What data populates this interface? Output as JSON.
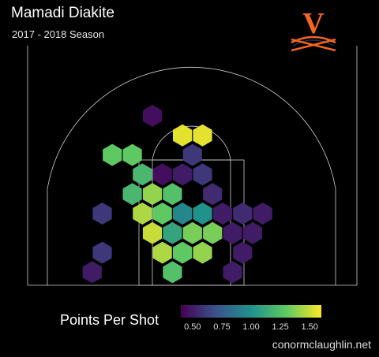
{
  "header": {
    "title": "Mamadi Diakite",
    "subtitle": "2017 - 2018 Season"
  },
  "logo": {
    "icon": "virginia-v-sabres-logo",
    "letter": "V",
    "color_orange": "#f26522",
    "color_blue": "#232d4b"
  },
  "legend": {
    "label": "Points Per Shot",
    "ticks": [
      "0.50",
      "0.75",
      "1.00",
      "1.25",
      "1.50"
    ],
    "tick_values": [
      0.5,
      0.75,
      1.0,
      1.25,
      1.5
    ],
    "range": [
      0.4,
      1.6
    ]
  },
  "credit": "conormclaughlin.net",
  "chart_data": {
    "type": "heatmap",
    "title": "Mamadi Diakite",
    "subtitle": "2017 - 2018 Season",
    "colorscale": "viridis",
    "color_label": "Points Per Shot",
    "color_range": [
      0.4,
      1.6
    ],
    "hex_grid": "row r, column c (court hexbins)",
    "hexes": [
      {
        "r": 0,
        "c": 5,
        "v": 0.45
      },
      {
        "r": 1,
        "c": 6.5,
        "v": 1.55
      },
      {
        "r": 1,
        "c": 7.5,
        "v": 1.55
      },
      {
        "r": 2,
        "c": 3,
        "v": 1.3
      },
      {
        "r": 2,
        "c": 4,
        "v": 1.3
      },
      {
        "r": 2,
        "c": 7,
        "v": 0.6
      },
      {
        "r": 3,
        "c": 4.5,
        "v": 1.2
      },
      {
        "r": 3,
        "c": 5.5,
        "v": 0.45
      },
      {
        "r": 3,
        "c": 6.5,
        "v": 0.5
      },
      {
        "r": 3,
        "c": 7.5,
        "v": 0.6
      },
      {
        "r": 4,
        "c": 4,
        "v": 1.2
      },
      {
        "r": 4,
        "c": 5,
        "v": 1.4
      },
      {
        "r": 4,
        "c": 6,
        "v": 1.25
      },
      {
        "r": 4,
        "c": 8,
        "v": 0.55
      },
      {
        "r": 5,
        "c": 2.5,
        "v": 0.6
      },
      {
        "r": 5,
        "c": 4.5,
        "v": 1.45
      },
      {
        "r": 5,
        "c": 5.5,
        "v": 1.3
      },
      {
        "r": 5,
        "c": 6.5,
        "v": 0.95
      },
      {
        "r": 5,
        "c": 7.5,
        "v": 1.0
      },
      {
        "r": 5,
        "c": 8.5,
        "v": 0.5
      },
      {
        "r": 5,
        "c": 9.5,
        "v": 0.55
      },
      {
        "r": 5,
        "c": 10.5,
        "v": 0.5
      },
      {
        "r": 6,
        "c": 5,
        "v": 1.5
      },
      {
        "r": 6,
        "c": 6,
        "v": 1.1
      },
      {
        "r": 6,
        "c": 7,
        "v": 1.35
      },
      {
        "r": 6,
        "c": 8,
        "v": 1.35
      },
      {
        "r": 6,
        "c": 9,
        "v": 0.5
      },
      {
        "r": 6,
        "c": 10,
        "v": 0.5
      },
      {
        "r": 7,
        "c": 2.5,
        "v": 0.6
      },
      {
        "r": 7,
        "c": 5.5,
        "v": 1.45
      },
      {
        "r": 7,
        "c": 6.5,
        "v": 1.3
      },
      {
        "r": 7,
        "c": 7.5,
        "v": 1.4
      },
      {
        "r": 7,
        "c": 9.5,
        "v": 0.5
      },
      {
        "r": 8,
        "c": 2,
        "v": 0.5
      },
      {
        "r": 8,
        "c": 6,
        "v": 1.25
      },
      {
        "r": 8,
        "c": 9,
        "v": 0.5
      }
    ]
  }
}
